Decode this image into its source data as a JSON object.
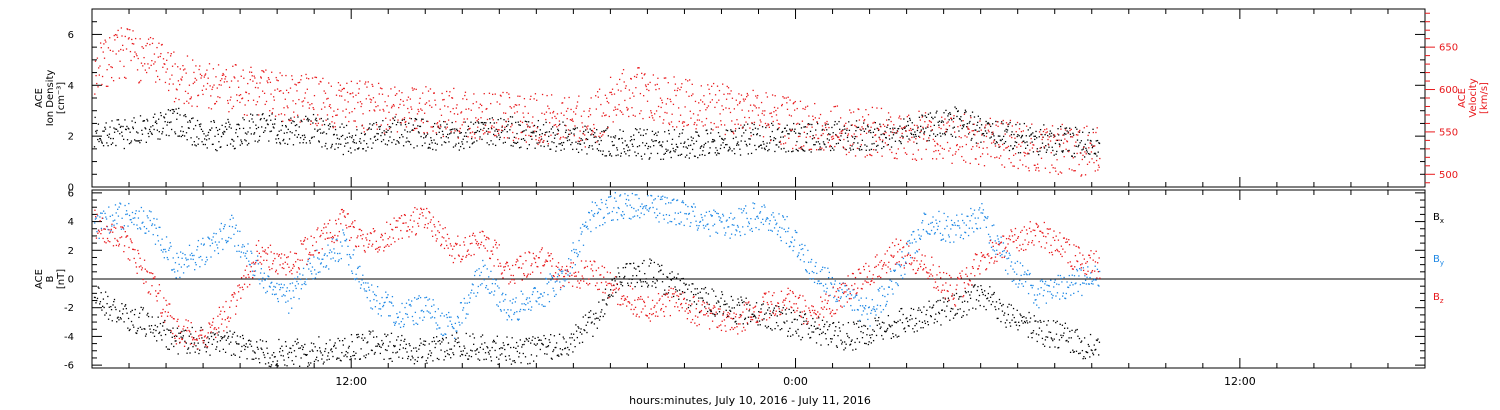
{
  "footer": {
    "time_label": "hours:minutes, July 10, 2016 - July 11, 2016"
  },
  "colors": {
    "axis": "#000000",
    "velocity": "#e8191c",
    "bx": "#000000",
    "by": "#1e88e5",
    "bz": "#e8191c"
  },
  "chart_data": [
    {
      "type": "scatter",
      "title": "",
      "ylabel_lines": [
        "ACE",
        "Ion Density",
        "[cm⁻³]"
      ],
      "y2label_lines": [
        "ACE",
        "Velocity",
        "[km/s]"
      ],
      "xlim": [
        5,
        41
      ],
      "ylim": [
        0,
        7
      ],
      "y2lim": [
        485,
        695
      ],
      "yticks": [
        0,
        2,
        4,
        6
      ],
      "y2ticks": [
        500,
        550,
        600,
        650
      ],
      "xticks": [
        12,
        24,
        36
      ],
      "xticklabels": [
        "12:00",
        "0:00",
        "12:00"
      ],
      "series": [
        {
          "key": "density",
          "color": "#000000",
          "axis": "left",
          "x": [
            5.0,
            5.75,
            6.5,
            7.25,
            8.0,
            8.75,
            9.5,
            10.25,
            11.0,
            11.75,
            12.5,
            13.25,
            14.0,
            14.75,
            15.5,
            16.25,
            17.0,
            17.75,
            18.5,
            19.25,
            20.0,
            20.75,
            21.5,
            22.25,
            23.0,
            23.75,
            24.5,
            25.25,
            26.0,
            26.75,
            27.5,
            28.25,
            29.0,
            29.75,
            30.5,
            31.25,
            32.0
          ],
          "y": [
            2.2,
            2.1,
            2.3,
            2.6,
            2.0,
            2.1,
            2.4,
            2.2,
            2.3,
            1.9,
            2.0,
            2.2,
            2.1,
            2.0,
            2.3,
            2.2,
            2.1,
            2.0,
            1.8,
            1.8,
            1.7,
            1.7,
            1.8,
            1.8,
            2.0,
            1.9,
            2.0,
            2.1,
            2.0,
            2.2,
            2.4,
            2.6,
            2.3,
            2.0,
            1.9,
            1.8,
            1.8
          ]
        },
        {
          "key": "velocity",
          "color": "#e8191c",
          "axis": "right",
          "x": [
            5.0,
            5.75,
            6.5,
            7.25,
            8.0,
            8.75,
            9.5,
            10.25,
            11.0,
            11.75,
            12.5,
            13.25,
            14.0,
            14.75,
            15.5,
            16.25,
            17.0,
            17.75,
            18.5,
            19.25,
            20.0,
            20.75,
            21.5,
            22.25,
            23.0,
            23.75,
            24.5,
            25.25,
            26.0,
            26.75,
            27.5,
            28.25,
            29.0,
            29.75,
            30.5,
            31.25,
            32.0
          ],
          "y": [
            620,
            645,
            635,
            615,
            605,
            602,
            598,
            590,
            588,
            583,
            580,
            578,
            575,
            573,
            570,
            568,
            566,
            564,
            562,
            600,
            595,
            585,
            580,
            576,
            572,
            562,
            557,
            553,
            550,
            548,
            546,
            543,
            540,
            537,
            533,
            530,
            527
          ]
        }
      ]
    },
    {
      "type": "scatter",
      "title": "",
      "ylabel_lines": [
        "ACE",
        "B",
        "[nT]"
      ],
      "xlim": [
        5,
        41
      ],
      "ylim": [
        -6.2,
        6.2
      ],
      "yticks": [
        -6,
        -4,
        -2,
        0,
        2,
        4,
        6
      ],
      "xticks": [
        12,
        24,
        36
      ],
      "xticklabels": [
        "12:00",
        "0:00",
        "12:00"
      ],
      "zero_line": true,
      "legend": [
        "Bx",
        "By",
        "Bz"
      ],
      "series": [
        {
          "key": "bx",
          "name": "Bx",
          "color": "#000000",
          "x": [
            5.0,
            5.75,
            6.5,
            7.25,
            8.0,
            8.75,
            9.5,
            10.25,
            11.0,
            11.75,
            12.5,
            13.25,
            14.0,
            14.75,
            15.5,
            16.25,
            17.0,
            17.75,
            18.5,
            19.25,
            20.0,
            20.75,
            21.5,
            22.25,
            23.0,
            23.75,
            24.5,
            25.25,
            26.0,
            26.75,
            27.5,
            28.25,
            29.0,
            29.75,
            30.5,
            31.25,
            32.0
          ],
          "y": [
            -1.0,
            -2.5,
            -3.0,
            -4.2,
            -4.3,
            -4.5,
            -5.0,
            -5.2,
            -5.0,
            -4.8,
            -4.5,
            -4.8,
            -5.0,
            -4.6,
            -4.8,
            -5.0,
            -4.8,
            -4.5,
            -3.0,
            0.2,
            0.5,
            -0.5,
            -1.5,
            -2.0,
            -2.5,
            -3.0,
            -3.5,
            -4.0,
            -3.8,
            -3.0,
            -2.5,
            -2.0,
            -1.0,
            -2.5,
            -3.5,
            -4.0,
            -4.8
          ]
        },
        {
          "key": "by",
          "name": "By",
          "color": "#1e88e5",
          "x": [
            5.0,
            5.75,
            6.5,
            7.25,
            8.0,
            8.75,
            9.5,
            10.25,
            11.0,
            11.75,
            12.5,
            13.25,
            14.0,
            14.75,
            15.5,
            16.25,
            17.0,
            17.75,
            18.5,
            19.25,
            20.0,
            20.75,
            21.5,
            22.25,
            23.0,
            23.75,
            24.5,
            25.25,
            26.0,
            26.75,
            27.5,
            28.25,
            29.0,
            29.75,
            30.5,
            31.25,
            32.0
          ],
          "y": [
            3.5,
            4.5,
            4.2,
            1.0,
            2.0,
            3.5,
            0.5,
            -1.5,
            1.0,
            2.5,
            -1.0,
            -2.5,
            -2.0,
            -3.5,
            0.5,
            -2.0,
            -1.5,
            0.5,
            4.5,
            5.2,
            5.0,
            4.8,
            4.0,
            3.8,
            4.5,
            3.5,
            0.5,
            -1.0,
            -2.5,
            0.5,
            4.0,
            3.5,
            4.5,
            1.0,
            -1.0,
            -0.5,
            0.0
          ]
        },
        {
          "key": "bz",
          "name": "Bz",
          "color": "#e8191c",
          "x": [
            5.0,
            5.75,
            6.5,
            7.25,
            8.0,
            8.75,
            9.5,
            10.25,
            11.0,
            11.75,
            12.5,
            13.25,
            14.0,
            14.75,
            15.5,
            16.25,
            17.0,
            17.75,
            18.5,
            19.25,
            20.0,
            20.75,
            21.5,
            22.25,
            23.0,
            23.75,
            24.5,
            25.25,
            26.0,
            26.75,
            27.5,
            28.25,
            29.0,
            29.75,
            30.5,
            31.25,
            32.0
          ],
          "y": [
            4.0,
            3.0,
            0.0,
            -3.5,
            -4.0,
            -2.0,
            2.0,
            1.0,
            2.5,
            4.0,
            2.5,
            3.5,
            4.5,
            2.0,
            3.0,
            0.5,
            1.5,
            0.2,
            0.5,
            -1.0,
            -2.0,
            -1.5,
            -2.5,
            -3.0,
            -2.0,
            -1.5,
            -2.5,
            -1.0,
            0.5,
            2.0,
            1.0,
            -1.0,
            1.5,
            2.5,
            3.5,
            2.0,
            1.0
          ]
        }
      ]
    }
  ]
}
